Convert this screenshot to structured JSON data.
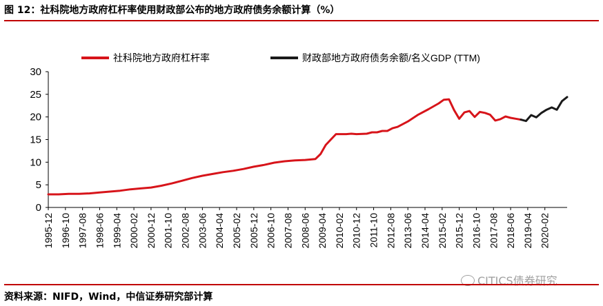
{
  "title": "图 12：社科院地方政府杠杆率使用财政部公布的地方政府债务余额计算（%）",
  "source": "资料来源：NIFD，Wind，中信证券研究部计算",
  "watermark": "CITICS债券研究",
  "chart_data": {
    "type": "line",
    "title": "",
    "xlabel": "",
    "ylabel": "",
    "ylim": [
      0,
      30
    ],
    "yticks": [
      0,
      5,
      10,
      15,
      20,
      25,
      30
    ],
    "legend_position": "top",
    "grid": false,
    "xticks": [
      "1995-12",
      "1996-10",
      "1997-08",
      "1998-06",
      "1999-04",
      "2000-02",
      "2000-12",
      "2001-10",
      "2002-08",
      "2003-06",
      "2004-04",
      "2005-02",
      "2005-12",
      "2006-10",
      "2007-08",
      "2008-06",
      "2009-04",
      "2010-02",
      "2010-12",
      "2011-10",
      "2012-08",
      "2013-06",
      "2014-04",
      "2015-02",
      "2015-12",
      "2016-10",
      "2017-08",
      "2018-06",
      "2019-04",
      "2020-02"
    ],
    "series": [
      {
        "name": "社科院地方政府杠杆率",
        "color": "#d7141a",
        "points": [
          [
            "1995-12",
            2.9
          ],
          [
            "1996-06",
            2.9
          ],
          [
            "1996-12",
            3.0
          ],
          [
            "1997-06",
            3.0
          ],
          [
            "1997-12",
            3.1
          ],
          [
            "1998-06",
            3.3
          ],
          [
            "1998-12",
            3.5
          ],
          [
            "1999-06",
            3.7
          ],
          [
            "1999-12",
            4.0
          ],
          [
            "2000-06",
            4.2
          ],
          [
            "2000-12",
            4.4
          ],
          [
            "2001-06",
            4.8
          ],
          [
            "2001-12",
            5.3
          ],
          [
            "2002-06",
            5.9
          ],
          [
            "2002-12",
            6.5
          ],
          [
            "2003-06",
            7.0
          ],
          [
            "2003-12",
            7.4
          ],
          [
            "2004-06",
            7.8
          ],
          [
            "2004-12",
            8.1
          ],
          [
            "2005-06",
            8.5
          ],
          [
            "2005-12",
            9.0
          ],
          [
            "2006-06",
            9.4
          ],
          [
            "2006-12",
            9.9
          ],
          [
            "2007-06",
            10.2
          ],
          [
            "2007-12",
            10.4
          ],
          [
            "2008-06",
            10.5
          ],
          [
            "2008-12",
            10.7
          ],
          [
            "2009-03",
            11.8
          ],
          [
            "2009-06",
            13.8
          ],
          [
            "2009-09",
            15.0
          ],
          [
            "2009-12",
            16.2
          ],
          [
            "2010-06",
            16.2
          ],
          [
            "2010-09",
            16.3
          ],
          [
            "2010-12",
            16.2
          ],
          [
            "2011-06",
            16.3
          ],
          [
            "2011-09",
            16.6
          ],
          [
            "2011-12",
            16.6
          ],
          [
            "2012-03",
            16.9
          ],
          [
            "2012-06",
            16.9
          ],
          [
            "2012-09",
            17.5
          ],
          [
            "2012-12",
            17.8
          ],
          [
            "2013-06",
            19.0
          ],
          [
            "2013-12",
            20.5
          ],
          [
            "2014-06",
            21.7
          ],
          [
            "2014-12",
            23.0
          ],
          [
            "2015-03",
            23.8
          ],
          [
            "2015-06",
            23.9
          ],
          [
            "2015-09",
            21.5
          ],
          [
            "2015-12",
            19.6
          ],
          [
            "2016-03",
            21.0
          ],
          [
            "2016-06",
            21.3
          ],
          [
            "2016-09",
            20.0
          ],
          [
            "2016-12",
            21.1
          ],
          [
            "2017-03",
            20.9
          ],
          [
            "2017-06",
            20.5
          ],
          [
            "2017-09",
            19.2
          ],
          [
            "2017-12",
            19.5
          ],
          [
            "2018-03",
            20.1
          ],
          [
            "2018-06",
            19.8
          ],
          [
            "2018-09",
            19.6
          ],
          [
            "2018-12",
            19.4
          ]
        ]
      },
      {
        "name": "财政部地方政府债务余额/名义GDP (TTM)",
        "color": "#1a1a1a",
        "points": [
          [
            "2018-12",
            19.4
          ],
          [
            "2019-03",
            19.1
          ],
          [
            "2019-06",
            20.4
          ],
          [
            "2019-09",
            19.9
          ],
          [
            "2019-12",
            20.9
          ],
          [
            "2020-03",
            21.6
          ],
          [
            "2020-06",
            22.1
          ],
          [
            "2020-09",
            21.6
          ],
          [
            "2020-12",
            23.5
          ],
          [
            "2021-03",
            24.4
          ]
        ]
      }
    ]
  }
}
